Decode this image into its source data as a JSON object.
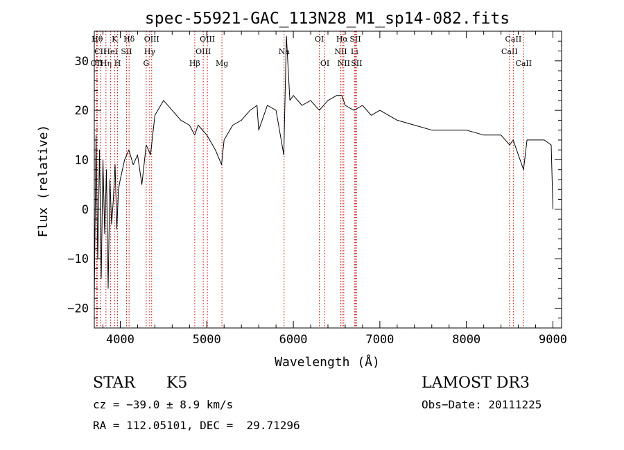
{
  "chart_data": {
    "type": "line",
    "title": "spec-55921-GAC_113N28_M1_sp14-082.fits",
    "xlabel": "Wavelength (Å)",
    "ylabel": "Flux (relative)",
    "xlim": [
      3700,
      9100
    ],
    "ylim": [
      -24,
      36
    ],
    "xticks": [
      4000,
      5000,
      6000,
      7000,
      8000,
      9000
    ],
    "yticks": [
      -20,
      -10,
      0,
      10,
      20,
      30
    ],
    "line_color": "#000000",
    "marker_line_color": "#cc0000",
    "series": [
      {
        "x": [
          3700,
          3720,
          3740,
          3760,
          3780,
          3800,
          3820,
          3840,
          3860,
          3880,
          3900,
          3920,
          3940,
          3960,
          3980,
          4000,
          4050,
          4100,
          4150,
          4200,
          4250,
          4300,
          4350,
          4400,
          4500,
          4600,
          4700,
          4800,
          4860,
          4900,
          5000,
          5100,
          5170,
          5200,
          5300,
          5400,
          5500,
          5580,
          5600,
          5700,
          5800,
          5890,
          5920,
          5960,
          6000,
          6100,
          6200,
          6300,
          6400,
          6500,
          6560,
          6600,
          6700,
          6800,
          6900,
          7000,
          7200,
          7400,
          7600,
          7800,
          8000,
          8200,
          8400,
          8500,
          8540,
          8600,
          8660,
          8700,
          8800,
          8900,
          8980,
          9000
        ],
        "y": [
          -18,
          15,
          -10,
          12,
          -14,
          10,
          -5,
          8,
          -16,
          6,
          -3,
          2,
          9,
          -4,
          4,
          6,
          10,
          12,
          9,
          11,
          5,
          13,
          11,
          19,
          22,
          20,
          18,
          17,
          15,
          17,
          15,
          12,
          9,
          14,
          17,
          18,
          20,
          21,
          16,
          21,
          20,
          11,
          35,
          22,
          23,
          21,
          22,
          20,
          22,
          23,
          23,
          21,
          20,
          21,
          19,
          20,
          18,
          17,
          16,
          16,
          16,
          15,
          15,
          13,
          14,
          11,
          8,
          14,
          14,
          14,
          13,
          0
        ]
      }
    ],
    "line_markers": [
      {
        "x": 3734,
        "label": "Hθ",
        "row": 0
      },
      {
        "x": 3727,
        "label": "OII",
        "row": 2
      },
      {
        "x": 3770,
        "label": "CII",
        "row": 1
      },
      {
        "x": 3835,
        "label": "Hη",
        "row": 2
      },
      {
        "x": 3889,
        "label": "HeI",
        "row": 1
      },
      {
        "x": 3934,
        "label": "K",
        "row": 0
      },
      {
        "x": 3969,
        "label": "H",
        "row": 2
      },
      {
        "x": 4072,
        "label": "SII",
        "row": 1
      },
      {
        "x": 4102,
        "label": "Hδ",
        "row": 0
      },
      {
        "x": 4300,
        "label": "G",
        "row": 2
      },
      {
        "x": 4340,
        "label": "Hγ",
        "row": 1
      },
      {
        "x": 4363,
        "label": "OIII",
        "row": 0
      },
      {
        "x": 4861,
        "label": "Hβ",
        "row": 2
      },
      {
        "x": 4959,
        "label": "OIII",
        "row": 1
      },
      {
        "x": 5007,
        "label": "OIII",
        "row": 0
      },
      {
        "x": 5175,
        "label": "Mg",
        "row": 2
      },
      {
        "x": 5893,
        "label": "Na",
        "row": 1
      },
      {
        "x": 6300,
        "label": "OI",
        "row": 0
      },
      {
        "x": 6364,
        "label": "OI",
        "row": 2
      },
      {
        "x": 6548,
        "label": "NII",
        "row": 1
      },
      {
        "x": 6563,
        "label": "Hα",
        "row": 0
      },
      {
        "x": 6583,
        "label": "NII",
        "row": 2
      },
      {
        "x": 6707,
        "label": "Li",
        "row": 1
      },
      {
        "x": 6716,
        "label": "SII",
        "row": 0
      },
      {
        "x": 6731,
        "label": "SII",
        "row": 2
      },
      {
        "x": 8498,
        "label": "CaII",
        "row": 1
      },
      {
        "x": 8542,
        "label": "CaII",
        "row": 0
      },
      {
        "x": 8662,
        "label": "CaII",
        "row": 2
      }
    ]
  },
  "info": {
    "object_class": "STAR",
    "subclass": "K5",
    "survey": "LAMOST DR3",
    "redshift_line": "cz = −39.0 ± 8.9 km/s",
    "obs_date_line": "Obs−Date: 20111225",
    "coords_line": "RA = 112.05101, DEC =  29.71296"
  }
}
